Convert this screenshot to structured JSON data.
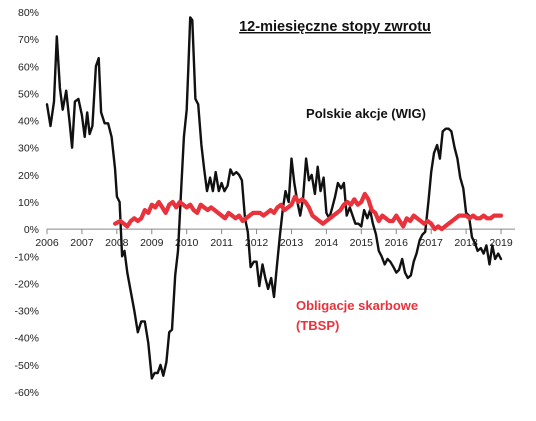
{
  "chart_data": {
    "type": "line",
    "title": "12-miesięczne stopy zwrotu",
    "xlabel": "",
    "ylabel": "",
    "xlim": [
      2006.0,
      2019.4
    ],
    "ylim": [
      -60,
      80
    ],
    "grid": false,
    "x_ticks": [
      "2006",
      "2007",
      "2008",
      "2009",
      "2010",
      "2011",
      "2012",
      "2013",
      "2014",
      "2015",
      "2016",
      "2017",
      "2018",
      "2019"
    ],
    "y_ticks": [
      "-60%",
      "-50%",
      "-40%",
      "-30%",
      "-20%",
      "-10%",
      "0%",
      "10%",
      "20%",
      "30%",
      "40%",
      "50%",
      "60%",
      "70%",
      "80%"
    ],
    "series": [
      {
        "name": "Polskie akcje (WIG)",
        "color": "#111111",
        "points": [
          [
            2006.0,
            46
          ],
          [
            2006.1,
            38
          ],
          [
            2006.2,
            47
          ],
          [
            2006.28,
            71
          ],
          [
            2006.37,
            52
          ],
          [
            2006.45,
            44
          ],
          [
            2006.55,
            51
          ],
          [
            2006.65,
            39
          ],
          [
            2006.72,
            30
          ],
          [
            2006.8,
            47
          ],
          [
            2006.9,
            48
          ],
          [
            2007.0,
            42
          ],
          [
            2007.08,
            34
          ],
          [
            2007.15,
            43
          ],
          [
            2007.22,
            35
          ],
          [
            2007.3,
            38
          ],
          [
            2007.4,
            60
          ],
          [
            2007.48,
            63
          ],
          [
            2007.55,
            43
          ],
          [
            2007.65,
            39
          ],
          [
            2007.75,
            39
          ],
          [
            2007.85,
            34
          ],
          [
            2007.95,
            22
          ],
          [
            2008.0,
            12
          ],
          [
            2008.08,
            10
          ],
          [
            2008.15,
            -10
          ],
          [
            2008.22,
            -8
          ],
          [
            2008.3,
            -16
          ],
          [
            2008.4,
            -23
          ],
          [
            2008.5,
            -30
          ],
          [
            2008.6,
            -38
          ],
          [
            2008.7,
            -34
          ],
          [
            2008.8,
            -34
          ],
          [
            2008.9,
            -42
          ],
          [
            2009.0,
            -55
          ],
          [
            2009.08,
            -53
          ],
          [
            2009.17,
            -53
          ],
          [
            2009.25,
            -50
          ],
          [
            2009.33,
            -54
          ],
          [
            2009.42,
            -49
          ],
          [
            2009.5,
            -38
          ],
          [
            2009.58,
            -37
          ],
          [
            2009.67,
            -17
          ],
          [
            2009.75,
            -8
          ],
          [
            2009.83,
            12
          ],
          [
            2009.92,
            34
          ],
          [
            2010.0,
            44
          ],
          [
            2010.05,
            60
          ],
          [
            2010.1,
            78
          ],
          [
            2010.16,
            77
          ],
          [
            2010.25,
            48
          ],
          [
            2010.33,
            46
          ],
          [
            2010.42,
            31
          ],
          [
            2010.5,
            22
          ],
          [
            2010.58,
            14
          ],
          [
            2010.67,
            19
          ],
          [
            2010.75,
            14
          ],
          [
            2010.83,
            21
          ],
          [
            2010.92,
            14
          ],
          [
            2011.0,
            17
          ],
          [
            2011.08,
            14
          ],
          [
            2011.17,
            16
          ],
          [
            2011.25,
            22
          ],
          [
            2011.33,
            20
          ],
          [
            2011.42,
            21
          ],
          [
            2011.5,
            20
          ],
          [
            2011.58,
            18
          ],
          [
            2011.67,
            4
          ],
          [
            2011.75,
            -1
          ],
          [
            2011.83,
            -14
          ],
          [
            2011.92,
            -12
          ],
          [
            2012.0,
            -12
          ],
          [
            2012.08,
            -21
          ],
          [
            2012.17,
            -13
          ],
          [
            2012.25,
            -18
          ],
          [
            2012.33,
            -22
          ],
          [
            2012.42,
            -18
          ],
          [
            2012.5,
            -25
          ],
          [
            2012.58,
            -14
          ],
          [
            2012.67,
            -2
          ],
          [
            2012.75,
            7
          ],
          [
            2012.83,
            14
          ],
          [
            2012.92,
            10
          ],
          [
            2013.0,
            26
          ],
          [
            2013.08,
            17
          ],
          [
            2013.17,
            10
          ],
          [
            2013.25,
            5
          ],
          [
            2013.33,
            11
          ],
          [
            2013.42,
            26
          ],
          [
            2013.5,
            18
          ],
          [
            2013.58,
            20
          ],
          [
            2013.67,
            13
          ],
          [
            2013.75,
            23
          ],
          [
            2013.83,
            14
          ],
          [
            2013.92,
            19
          ],
          [
            2014.0,
            6
          ],
          [
            2014.08,
            4
          ],
          [
            2014.17,
            8
          ],
          [
            2014.25,
            12
          ],
          [
            2014.33,
            17
          ],
          [
            2014.42,
            15
          ],
          [
            2014.5,
            17
          ],
          [
            2014.58,
            5
          ],
          [
            2014.67,
            8
          ],
          [
            2014.75,
            5
          ],
          [
            2014.83,
            2
          ],
          [
            2014.92,
            2
          ],
          [
            2015.0,
            1
          ],
          [
            2015.08,
            7
          ],
          [
            2015.17,
            4
          ],
          [
            2015.25,
            7
          ],
          [
            2015.33,
            2
          ],
          [
            2015.42,
            -2
          ],
          [
            2015.5,
            -8
          ],
          [
            2015.58,
            -10
          ],
          [
            2015.67,
            -13
          ],
          [
            2015.75,
            -11
          ],
          [
            2015.83,
            -12
          ],
          [
            2015.92,
            -14
          ],
          [
            2016.0,
            -16
          ],
          [
            2016.08,
            -15
          ],
          [
            2016.17,
            -11
          ],
          [
            2016.25,
            -16
          ],
          [
            2016.33,
            -18
          ],
          [
            2016.42,
            -17
          ],
          [
            2016.5,
            -12
          ],
          [
            2016.58,
            -9
          ],
          [
            2016.67,
            -4
          ],
          [
            2016.75,
            -2
          ],
          [
            2016.83,
            -1
          ],
          [
            2016.92,
            10
          ],
          [
            2017.0,
            21
          ],
          [
            2017.08,
            28
          ],
          [
            2017.17,
            31
          ],
          [
            2017.25,
            26
          ],
          [
            2017.33,
            36
          ],
          [
            2017.42,
            37
          ],
          [
            2017.5,
            37
          ],
          [
            2017.58,
            36
          ],
          [
            2017.67,
            30
          ],
          [
            2017.75,
            26
          ],
          [
            2017.83,
            19
          ],
          [
            2017.92,
            15
          ],
          [
            2018.0,
            6
          ],
          [
            2018.08,
            5
          ],
          [
            2018.17,
            -3
          ],
          [
            2018.25,
            -5
          ],
          [
            2018.33,
            -8
          ],
          [
            2018.42,
            -7
          ],
          [
            2018.5,
            -9
          ],
          [
            2018.58,
            -6
          ],
          [
            2018.67,
            -13
          ],
          [
            2018.75,
            -6
          ],
          [
            2018.83,
            -11
          ],
          [
            2018.92,
            -9
          ],
          [
            2019.0,
            -11
          ]
        ]
      },
      {
        "name": "Obligacje skarbowe (TBSP)",
        "color": "#e8323c",
        "points": [
          [
            2007.95,
            2
          ],
          [
            2008.1,
            3
          ],
          [
            2008.2,
            2
          ],
          [
            2008.3,
            1
          ],
          [
            2008.4,
            3
          ],
          [
            2008.5,
            4
          ],
          [
            2008.6,
            3
          ],
          [
            2008.7,
            4
          ],
          [
            2008.8,
            7
          ],
          [
            2008.9,
            6
          ],
          [
            2009.0,
            9
          ],
          [
            2009.1,
            8
          ],
          [
            2009.2,
            10
          ],
          [
            2009.3,
            8
          ],
          [
            2009.4,
            6
          ],
          [
            2009.5,
            9
          ],
          [
            2009.6,
            10
          ],
          [
            2009.7,
            8
          ],
          [
            2009.8,
            10
          ],
          [
            2009.9,
            9
          ],
          [
            2010.0,
            8
          ],
          [
            2010.1,
            9
          ],
          [
            2010.2,
            7
          ],
          [
            2010.3,
            6
          ],
          [
            2010.4,
            9
          ],
          [
            2010.5,
            8
          ],
          [
            2010.6,
            7
          ],
          [
            2010.7,
            8
          ],
          [
            2010.8,
            7
          ],
          [
            2010.9,
            6
          ],
          [
            2011.0,
            5
          ],
          [
            2011.1,
            4
          ],
          [
            2011.2,
            6
          ],
          [
            2011.3,
            5
          ],
          [
            2011.4,
            4
          ],
          [
            2011.5,
            5
          ],
          [
            2011.6,
            3
          ],
          [
            2011.7,
            4
          ],
          [
            2011.8,
            5
          ],
          [
            2011.9,
            6
          ],
          [
            2012.0,
            6
          ],
          [
            2012.1,
            6
          ],
          [
            2012.2,
            5
          ],
          [
            2012.3,
            6
          ],
          [
            2012.4,
            7
          ],
          [
            2012.5,
            6
          ],
          [
            2012.6,
            8
          ],
          [
            2012.7,
            9
          ],
          [
            2012.8,
            7
          ],
          [
            2012.9,
            8
          ],
          [
            2013.0,
            9
          ],
          [
            2013.1,
            12
          ],
          [
            2013.2,
            10
          ],
          [
            2013.3,
            11
          ],
          [
            2013.4,
            10
          ],
          [
            2013.5,
            8
          ],
          [
            2013.6,
            5
          ],
          [
            2013.7,
            4
          ],
          [
            2013.8,
            3
          ],
          [
            2013.9,
            2
          ],
          [
            2014.0,
            3
          ],
          [
            2014.1,
            4
          ],
          [
            2014.2,
            5
          ],
          [
            2014.3,
            6
          ],
          [
            2014.4,
            7
          ],
          [
            2014.5,
            9
          ],
          [
            2014.6,
            10
          ],
          [
            2014.7,
            9
          ],
          [
            2014.8,
            11
          ],
          [
            2014.9,
            9
          ],
          [
            2015.0,
            10
          ],
          [
            2015.1,
            13
          ],
          [
            2015.2,
            11
          ],
          [
            2015.3,
            7
          ],
          [
            2015.4,
            6
          ],
          [
            2015.5,
            3
          ],
          [
            2015.6,
            5
          ],
          [
            2015.7,
            4
          ],
          [
            2015.8,
            3
          ],
          [
            2015.9,
            3
          ],
          [
            2016.0,
            5
          ],
          [
            2016.1,
            3
          ],
          [
            2016.2,
            1
          ],
          [
            2016.3,
            4
          ],
          [
            2016.4,
            3
          ],
          [
            2016.5,
            5
          ],
          [
            2016.6,
            4
          ],
          [
            2016.7,
            3
          ],
          [
            2016.8,
            2
          ],
          [
            2016.9,
            3
          ],
          [
            2017.0,
            2
          ],
          [
            2017.1,
            0
          ],
          [
            2017.2,
            1
          ],
          [
            2017.3,
            0
          ],
          [
            2017.4,
            1
          ],
          [
            2017.5,
            2
          ],
          [
            2017.6,
            3
          ],
          [
            2017.7,
            4
          ],
          [
            2017.8,
            5
          ],
          [
            2017.9,
            5
          ],
          [
            2018.0,
            5
          ],
          [
            2018.1,
            4
          ],
          [
            2018.2,
            5
          ],
          [
            2018.3,
            4
          ],
          [
            2018.4,
            4
          ],
          [
            2018.5,
            5
          ],
          [
            2018.6,
            4
          ],
          [
            2018.7,
            4
          ],
          [
            2018.8,
            5
          ],
          [
            2018.9,
            5
          ],
          [
            2019.0,
            5
          ]
        ]
      }
    ]
  }
}
